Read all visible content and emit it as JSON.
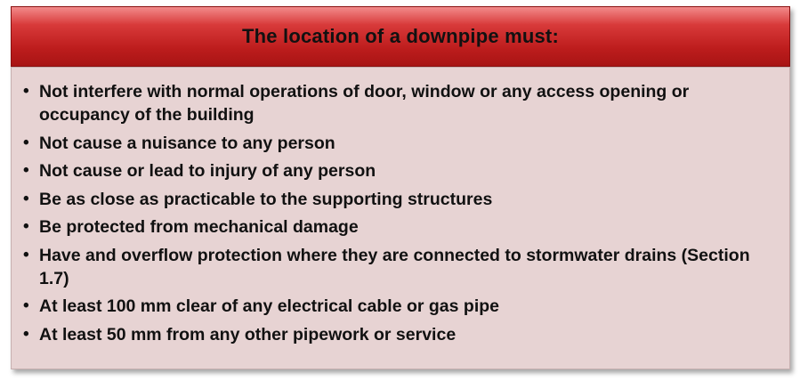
{
  "header": {
    "title": "The location of a downpipe must:"
  },
  "items": [
    "Not interfere with normal operations of door, window or any access opening or occupancy of the building",
    "Not cause a nuisance to any person",
    "Not cause or lead to injury of any person",
    "Be as close as practicable to the supporting structures",
    "Be protected from mechanical damage",
    "Have and overflow protection where they are connected to stormwater drains (Section 1.7)",
    "At least 100 mm clear of any electrical cable or gas pipe",
    "At least 50 mm from any other pipework or service"
  ],
  "colors": {
    "header_dark": "#a81414",
    "header_light": "#f28b8b",
    "panel_background": "#e7d3d3"
  }
}
